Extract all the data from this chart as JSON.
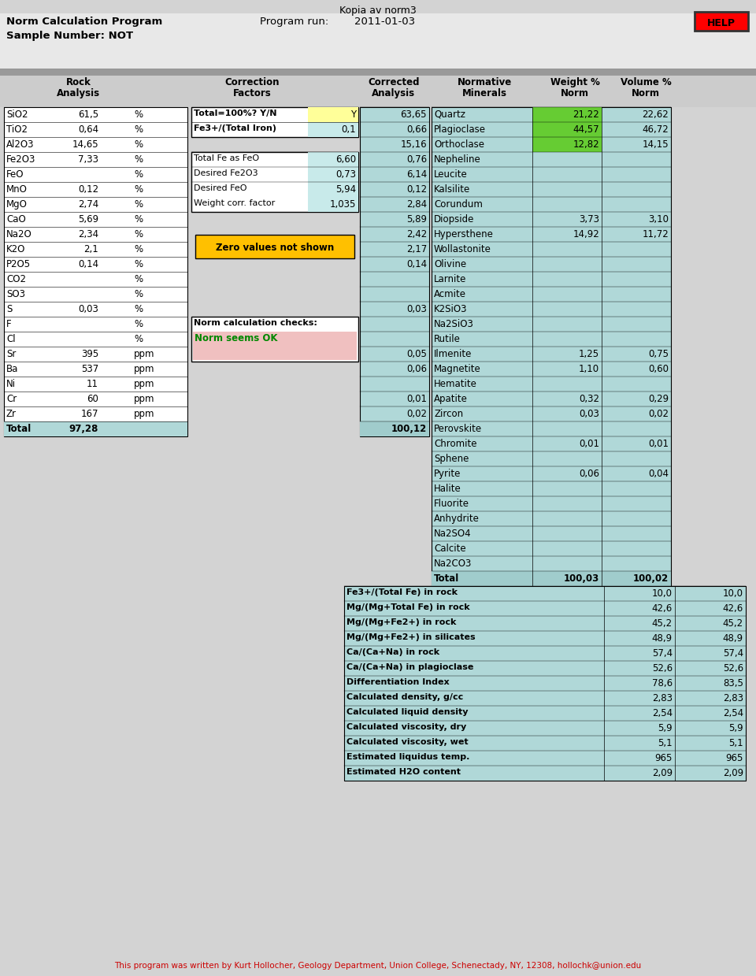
{
  "title": "Kopia av norm3",
  "program_label": "Norm Calculation Program",
  "program_run_label": "Program run:",
  "program_run_date": "2011-01-03",
  "sample_label": "Sample Number: NOT",
  "help_text": "HELP",
  "footer": "This program was written by Kurt Hollocher, Geology Department, Union College, Schenectady, NY, 12308, hollochk@union.edu",
  "rock_analysis": [
    [
      "SiO2",
      "61,5",
      "%"
    ],
    [
      "TiO2",
      "0,64",
      "%"
    ],
    [
      "Al2O3",
      "14,65",
      "%"
    ],
    [
      "Fe2O3",
      "7,33",
      "%"
    ],
    [
      "FeO",
      "",
      "%"
    ],
    [
      "MnO",
      "0,12",
      "%"
    ],
    [
      "MgO",
      "2,74",
      "%"
    ],
    [
      "CaO",
      "5,69",
      "%"
    ],
    [
      "Na2O",
      "2,34",
      "%"
    ],
    [
      "K2O",
      "2,1",
      "%"
    ],
    [
      "P2O5",
      "0,14",
      "%"
    ],
    [
      "CO2",
      "",
      "%"
    ],
    [
      "SO3",
      "",
      "%"
    ],
    [
      "S",
      "0,03",
      "%"
    ],
    [
      "F",
      "",
      "%"
    ],
    [
      "Cl",
      "",
      "%"
    ],
    [
      "Sr",
      "395",
      "ppm"
    ],
    [
      "Ba",
      "537",
      "ppm"
    ],
    [
      "Ni",
      "11",
      "ppm"
    ],
    [
      "Cr",
      "60",
      "ppm"
    ],
    [
      "Zr",
      "167",
      "ppm"
    ],
    [
      "Total",
      "97,28",
      ""
    ]
  ],
  "correction_factors_box1": [
    [
      "Total=100%? Y/N",
      "Y"
    ],
    [
      "Fe3+/(Total Iron)",
      "0,1"
    ]
  ],
  "correction_factors_box2": [
    [
      "Total Fe as FeO",
      "6,60"
    ],
    [
      "Desired Fe2O3",
      "0,73"
    ],
    [
      "Desired FeO",
      "5,94"
    ],
    [
      "Weight corr. factor",
      "1,035"
    ]
  ],
  "zero_values_text": "Zero values not shown",
  "norm_calc_check_title": "Norm calculation checks:",
  "norm_calc_check_text": "Norm seems OK",
  "corrected_analysis": [
    "63,65",
    "0,66",
    "15,16",
    "0,76",
    "6,14",
    "0,12",
    "2,84",
    "5,89",
    "2,42",
    "2,17",
    "0,14",
    "",
    "",
    "0,03",
    "",
    "",
    "0,05",
    "0,06",
    "",
    "0,01",
    "0,02",
    "100,12"
  ],
  "normative_minerals": [
    [
      "Quartz",
      "21,22",
      "22,62"
    ],
    [
      "Plagioclase",
      "44,57",
      "46,72"
    ],
    [
      "Orthoclase",
      "12,82",
      "14,15"
    ],
    [
      "Nepheline",
      "",
      ""
    ],
    [
      "Leucite",
      "",
      ""
    ],
    [
      "Kalsilite",
      "",
      ""
    ],
    [
      "Corundum",
      "",
      ""
    ],
    [
      "Diopside",
      "3,73",
      "3,10"
    ],
    [
      "Hypersthene",
      "14,92",
      "11,72"
    ],
    [
      "Wollastonite",
      "",
      ""
    ],
    [
      "Olivine",
      "",
      ""
    ],
    [
      "Larnite",
      "",
      ""
    ],
    [
      "Acmite",
      "",
      ""
    ],
    [
      "K2SiO3",
      "",
      ""
    ],
    [
      "Na2SiO3",
      "",
      ""
    ],
    [
      "Rutile",
      "",
      ""
    ],
    [
      "Ilmenite",
      "1,25",
      "0,75"
    ],
    [
      "Magnetite",
      "1,10",
      "0,60"
    ],
    [
      "Hematite",
      "",
      ""
    ],
    [
      "Apatite",
      "0,32",
      "0,29"
    ],
    [
      "Zircon",
      "0,03",
      "0,02"
    ],
    [
      "Perovskite",
      "",
      ""
    ],
    [
      "Chromite",
      "0,01",
      "0,01"
    ],
    [
      "Sphene",
      "",
      ""
    ],
    [
      "Pyrite",
      "0,06",
      "0,04"
    ],
    [
      "Halite",
      "",
      ""
    ],
    [
      "Fluorite",
      "",
      ""
    ],
    [
      "Anhydrite",
      "",
      ""
    ],
    [
      "Na2SO4",
      "",
      ""
    ],
    [
      "Calcite",
      "",
      ""
    ],
    [
      "Na2CO3",
      "",
      ""
    ],
    [
      "Total",
      "100,03",
      "100,02"
    ]
  ],
  "summary_rows": [
    [
      "Fe3+/(Total Fe) in rock",
      "10,0",
      "10,0"
    ],
    [
      "Mg/(Mg+Total Fe) in rock",
      "42,6",
      "42,6"
    ],
    [
      "Mg/(Mg+Fe2+) in rock",
      "45,2",
      "45,2"
    ],
    [
      "Mg/(Mg+Fe2+) in silicates",
      "48,9",
      "48,9"
    ],
    [
      "Ca/(Ca+Na) in rock",
      "57,4",
      "57,4"
    ],
    [
      "Ca/(Ca+Na) in plagioclase",
      "52,6",
      "52,6"
    ],
    [
      "Differentiation Index",
      "78,6",
      "83,5"
    ],
    [
      "Calculated density, g/cc",
      "2,83",
      "2,83"
    ],
    [
      "Calculated liquid density",
      "2,54",
      "2,54"
    ],
    [
      "Calculated viscosity, dry",
      "5,9",
      "5,9"
    ],
    [
      "Calculated viscosity, wet",
      "5,1",
      "5,1"
    ],
    [
      "Estimated liquidus temp.",
      "965",
      "965"
    ],
    [
      "Estimated H2O content",
      "2,09",
      "2,09"
    ]
  ],
  "bg_color": "#d3d3d3",
  "white": "#ffffff",
  "teal_bg": "#b0d8d8",
  "yellow_bg": "#ffff99",
  "green_bg": "#66cc33",
  "light_teal_box": "#c8eaea",
  "orange_box": "#ffc000",
  "pink_bg": "#f0c0c0",
  "green_text": "#008800"
}
